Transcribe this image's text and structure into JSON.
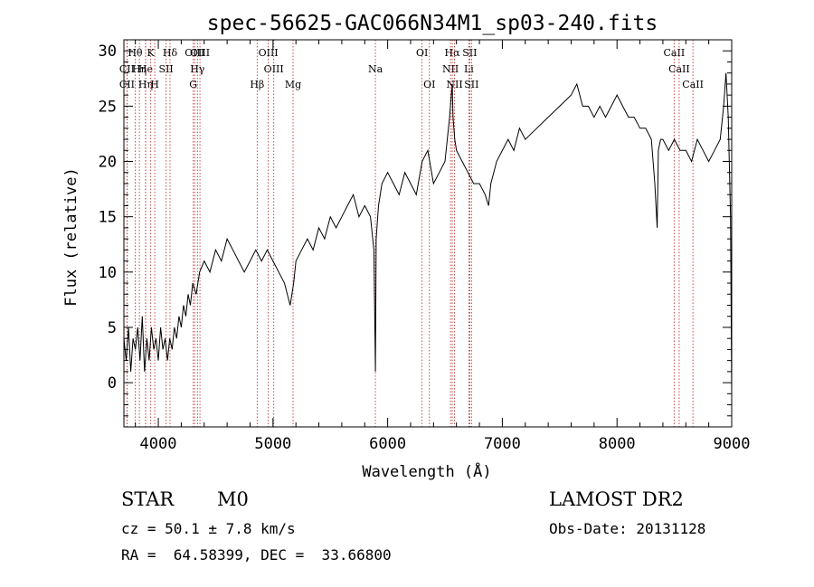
{
  "chart_data": {
    "type": "line",
    "title": "spec-56625-GAC066N34M1_sp03-240.fits",
    "xlabel": "Wavelength (Å)",
    "ylabel": "Flux (relative)",
    "xlim": [
      3700,
      9000
    ],
    "ylim": [
      -4,
      31
    ],
    "x_ticks": [
      4000,
      5000,
      6000,
      7000,
      8000,
      9000
    ],
    "y_ticks": [
      0,
      5,
      10,
      15,
      20,
      25,
      30
    ],
    "grid": false,
    "series": [
      {
        "x": [
          3700,
          3720,
          3740,
          3760,
          3780,
          3800,
          3820,
          3840,
          3860,
          3880,
          3900,
          3920,
          3940,
          3960,
          3980,
          4000,
          4020,
          4040,
          4060,
          4080,
          4100,
          4120,
          4140,
          4160,
          4180,
          4200,
          4220,
          4240,
          4260,
          4280,
          4300,
          4330,
          4360,
          4400,
          4450,
          4500,
          4550,
          4600,
          4650,
          4700,
          4750,
          4800,
          4850,
          4900,
          4950,
          5000,
          5050,
          5100,
          5150,
          5180,
          5200,
          5250,
          5300,
          5350,
          5400,
          5450,
          5500,
          5550,
          5600,
          5650,
          5700,
          5750,
          5800,
          5850,
          5880,
          5893,
          5900,
          5920,
          5950,
          6000,
          6050,
          6100,
          6150,
          6200,
          6250,
          6300,
          6350,
          6400,
          6450,
          6500,
          6540,
          6555,
          6563,
          6570,
          6585,
          6600,
          6650,
          6700,
          6750,
          6800,
          6850,
          6880,
          6900,
          6950,
          7000,
          7050,
          7100,
          7150,
          7200,
          7300,
          7400,
          7500,
          7600,
          7650,
          7700,
          7750,
          7800,
          7850,
          7900,
          7950,
          8000,
          8050,
          8100,
          8150,
          8200,
          8250,
          8300,
          8330,
          8350,
          8360,
          8380,
          8400,
          8450,
          8500,
          8550,
          8600,
          8650,
          8700,
          8750,
          8800,
          8850,
          8900,
          8930,
          8950,
          8970,
          8990,
          9000
        ],
        "y": [
          4,
          2,
          5,
          1,
          4,
          3,
          5,
          2,
          6,
          1,
          4,
          2,
          5,
          3,
          4,
          2,
          5,
          3,
          4,
          2,
          4,
          3,
          5,
          4,
          6,
          5,
          7,
          6,
          8,
          7,
          9,
          8,
          10,
          11,
          10,
          12,
          11,
          13,
          12,
          11,
          10,
          11,
          12,
          11,
          12,
          11,
          10,
          9,
          7,
          9,
          11,
          12,
          13,
          12,
          14,
          13,
          15,
          14,
          15,
          16,
          17,
          15,
          16,
          15,
          12,
          1,
          13,
          16,
          18,
          19,
          18,
          17,
          19,
          18,
          17,
          20,
          21,
          18,
          19,
          20,
          24,
          26,
          27,
          24,
          22,
          21,
          20,
          19,
          18,
          18,
          17,
          16,
          18,
          20,
          21,
          22,
          21,
          23,
          22,
          23,
          24,
          25,
          26,
          27,
          25,
          25,
          24,
          25,
          24,
          25,
          26,
          25,
          24,
          24,
          23,
          23,
          22,
          18,
          14,
          21,
          22,
          22,
          21,
          22,
          21,
          21,
          20,
          22,
          21,
          20,
          21,
          22,
          25,
          28,
          24,
          15,
          -1
        ]
      }
    ],
    "lines": [
      {
        "name": "Hθ",
        "x": 3798,
        "row": 0
      },
      {
        "name": "CII",
        "x": 3727,
        "row": 1
      },
      {
        "name": "CII",
        "x": 3727,
        "row": 2
      },
      {
        "name": "Hη",
        "x": 3835,
        "row": 1
      },
      {
        "name": "He",
        "x": 3889,
        "row": 1
      },
      {
        "name": "Hη",
        "x": 3889,
        "row": 2
      },
      {
        "name": "K",
        "x": 3934,
        "row": 0
      },
      {
        "name": "H",
        "x": 3969,
        "row": 2
      },
      {
        "name": "SII",
        "x": 4068,
        "row": 1
      },
      {
        "name": "Hδ",
        "x": 4102,
        "row": 0
      },
      {
        "name": "OIII",
        "x": 4317,
        "row": 0
      },
      {
        "name": "Hγ",
        "x": 4341,
        "row": 1
      },
      {
        "name": "G",
        "x": 4305,
        "row": 2
      },
      {
        "name": "OIII",
        "x": 4363,
        "row": 0
      },
      {
        "name": "Hβ",
        "x": 4862,
        "row": 2
      },
      {
        "name": "OIII",
        "x": 4959,
        "row": 0
      },
      {
        "name": "OIII",
        "x": 5007,
        "row": 1
      },
      {
        "name": "Mg",
        "x": 5175,
        "row": 2
      },
      {
        "name": "Na",
        "x": 5893,
        "row": 1
      },
      {
        "name": "OI",
        "x": 6300,
        "row": 0
      },
      {
        "name": "OI",
        "x": 6364,
        "row": 2
      },
      {
        "name": "Hα",
        "x": 6563,
        "row": 0
      },
      {
        "name": "NII",
        "x": 6548,
        "row": 1
      },
      {
        "name": "NII",
        "x": 6583,
        "row": 2
      },
      {
        "name": "SII",
        "x": 6716,
        "row": 0
      },
      {
        "name": "Li",
        "x": 6708,
        "row": 1
      },
      {
        "name": "SII",
        "x": 6731,
        "row": 2
      },
      {
        "name": "CaII",
        "x": 8498,
        "row": 0
      },
      {
        "name": "CaII",
        "x": 8542,
        "row": 1
      },
      {
        "name": "CaII",
        "x": 8662,
        "row": 2
      }
    ]
  },
  "info": {
    "object_class": "STAR",
    "subclass": "M0",
    "survey": "LAMOST DR2",
    "cz": "cz = 50.1 ± 7.8 km/s",
    "obs_date": "Obs-Date: 20131128",
    "coords": "RA =  64.58399, DEC =  33.66800"
  }
}
